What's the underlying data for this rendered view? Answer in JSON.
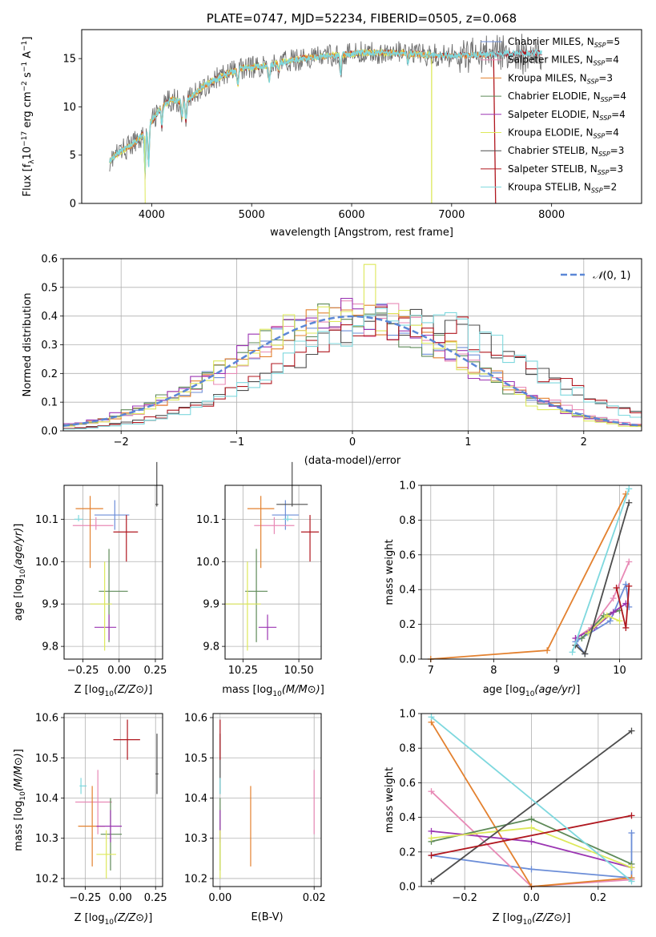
{
  "colors": {
    "c_miles": "#6c8ed8",
    "s_miles": "#e88ab6",
    "k_miles": "#e3812f",
    "c_elodie": "#5e8a58",
    "s_elodie": "#9b35b2",
    "k_elodie": "#dde85a",
    "c_stelib": "#4d4d4d",
    "s_stelib": "#b0171f",
    "k_stelib": "#7ed8de",
    "gauss": "#5b87d6"
  },
  "chart_data": [
    {
      "id": "spectrum",
      "type": "line",
      "title": "PLATE=0747, MJD=52234, FIBERID=0505, z=0.068",
      "xlabel": "wavelength [Angstrom, rest frame]",
      "ylabel": "Flux [fλ10⁻¹⁷ erg cm⁻² s⁻¹ A⁻¹]",
      "xlim": [
        3300,
        8900
      ],
      "ylim": [
        0,
        18
      ],
      "xticks": [
        4000,
        5000,
        6000,
        7000,
        8000
      ],
      "yticks": [
        0,
        5,
        10,
        15
      ],
      "legend": [
        {
          "label": "Chabrier MILES, N",
          "sub": "SSP",
          "tail": "=5",
          "color": "#6c8ed8"
        },
        {
          "label": "Salpeter MILES, N",
          "sub": "SSP",
          "tail": "=4",
          "color": "#e88ab6"
        },
        {
          "label": "Kroupa MILES, N",
          "sub": "SSP",
          "tail": "=3",
          "color": "#e3812f"
        },
        {
          "label": "Chabrier ELODIE, N",
          "sub": "SSP",
          "tail": "=4",
          "color": "#5e8a58"
        },
        {
          "label": "Salpeter ELODIE, N",
          "sub": "SSP",
          "tail": "=4",
          "color": "#9b35b2"
        },
        {
          "label": "Kroupa ELODIE, N",
          "sub": "SSP",
          "tail": "=4",
          "color": "#dde85a"
        },
        {
          "label": "Chabrier STELIB, N",
          "sub": "SSP",
          "tail": "=3",
          "color": "#4d4d4d"
        },
        {
          "label": "Salpeter STELIB, N",
          "sub": "SSP",
          "tail": "=3",
          "color": "#b0171f"
        },
        {
          "label": "Kroupa STELIB, N",
          "sub": "SSP",
          "tail": "=2",
          "color": "#7ed8de"
        }
      ],
      "continuum": [
        [
          3580,
          4.5
        ],
        [
          3700,
          5.5
        ],
        [
          3800,
          6.0
        ],
        [
          3900,
          7.0
        ],
        [
          4000,
          8.5
        ],
        [
          4100,
          10.0
        ],
        [
          4200,
          10.8
        ],
        [
          4300,
          10.5
        ],
        [
          4400,
          11.0
        ],
        [
          4500,
          12.0
        ],
        [
          4700,
          13.2
        ],
        [
          4900,
          14.0
        ],
        [
          5100,
          14.2
        ],
        [
          5300,
          14.6
        ],
        [
          5500,
          15.0
        ],
        [
          5700,
          15.2
        ],
        [
          5900,
          15.4
        ],
        [
          6100,
          15.6
        ],
        [
          6300,
          15.6
        ],
        [
          6500,
          15.6
        ],
        [
          6700,
          15.4
        ],
        [
          6900,
          15.3
        ],
        [
          7100,
          15.3
        ],
        [
          7300,
          15.4
        ],
        [
          7500,
          15.5
        ],
        [
          7800,
          15.6
        ],
        [
          8100,
          15.6
        ],
        [
          8400,
          15.7
        ],
        [
          8700,
          15.8
        ],
        [
          8880,
          15.9
        ]
      ]
    },
    {
      "id": "residual_hist",
      "type": "histogram",
      "xlabel": "(data-model)/error",
      "ylabel": "Normed distribution",
      "xlim": [
        -2.5,
        2.5
      ],
      "ylim": [
        0,
        0.6
      ],
      "xticks": [
        -2,
        -1,
        0,
        1,
        2
      ],
      "yticks": [
        0.0,
        0.1,
        0.2,
        0.3,
        0.4,
        0.5,
        0.6
      ],
      "legend": "N(0, 1)",
      "bin_width": 0.1
    },
    {
      "id": "age_vs_Z",
      "type": "scatter",
      "xlabel": "Z [log10(Z/Z⊙)]",
      "ylabel": "age  [log10(age/yr)]",
      "xlim": [
        -0.38,
        0.3
      ],
      "ylim": [
        9.77,
        10.18
      ],
      "xticks": [
        -0.25,
        0.0,
        0.25
      ],
      "yticks": [
        9.8,
        9.9,
        10.0,
        10.1
      ]
    },
    {
      "id": "age_vs_mass",
      "type": "scatter",
      "xlabel": "mass [log10(M/M⊙)]",
      "ylabel": "",
      "xlim": [
        10.17,
        10.6
      ],
      "ylim": [
        9.77,
        10.18
      ],
      "xticks": [
        10.25,
        10.5
      ],
      "yticks": [
        9.8,
        9.9,
        10.0,
        10.1
      ]
    },
    {
      "id": "weight_vs_age",
      "type": "line",
      "xlabel": "age  [log10(age/yr)]",
      "ylabel": "mass weight",
      "xlim": [
        6.85,
        10.35
      ],
      "ylim": [
        0,
        1.0
      ],
      "xticks": [
        7,
        8,
        9,
        10
      ],
      "yticks": [
        0.0,
        0.2,
        0.4,
        0.6,
        0.8,
        1.0
      ]
    },
    {
      "id": "mass_vs_Z",
      "type": "scatter",
      "xlabel": "Z [log10(Z/Z⊙)]",
      "ylabel": "mass [log10(M/M⊙)]",
      "xlim": [
        -0.4,
        0.3
      ],
      "ylim": [
        10.18,
        10.61
      ],
      "xticks": [
        -0.25,
        0.0,
        0.25
      ],
      "yticks": [
        10.2,
        10.3,
        10.4,
        10.5,
        10.6
      ]
    },
    {
      "id": "mass_vs_ebv",
      "type": "scatter",
      "xlabel": "E(B-V)",
      "ylabel": "",
      "xlim": [
        -0.0015,
        0.0215
      ],
      "ylim": [
        10.18,
        10.61
      ],
      "xticks": [
        0.0,
        0.02
      ],
      "yticks": [
        10.2,
        10.3,
        10.4,
        10.5,
        10.6
      ]
    },
    {
      "id": "weight_vs_Z",
      "type": "line",
      "xlabel": "Z [log10(Z/Z⊙)]",
      "ylabel": "mass weight",
      "xlim": [
        -0.33,
        0.33
      ],
      "ylim": [
        0,
        1.0
      ],
      "xticks": [
        -0.2,
        0.0,
        0.2
      ],
      "yticks": [
        0.0,
        0.2,
        0.4,
        0.6,
        0.8,
        1.0
      ]
    }
  ],
  "models": [
    {
      "key": "c_miles",
      "color": "#6c8ed8",
      "age": [
        10.0,
        0.05,
        0.05
      ],
      "Z": [
        0.0,
        0.1,
        0.1
      ],
      "mass": [
        10.435,
        0.06,
        0.07
      ],
      "mass_err_in_age_panel": [
        0.44,
        0.02,
        0.03
      ],
      "ebv": 0.0,
      "age_pts": [
        [
          9.45,
          0.03
        ],
        [
          9.3,
          0.1
        ],
        [
          9.85,
          0.22
        ],
        [
          10.1,
          0.43
        ],
        [
          10.15,
          0.3
        ]
      ],
      "Z_pts": [
        [
          -0.3,
          0.18
        ],
        [
          0.0,
          0.1
        ],
        [
          0.3,
          0.05
        ],
        [
          0.3,
          0.31
        ]
      ],
      "age_panel_pt": [
        -0.03,
        10.11,
        0.14,
        0.1,
        0.035,
        0.035
      ],
      "mass_panel_pt": [
        10.44,
        10.11,
        0.06,
        0.06,
        0.035,
        0.035
      ]
    },
    {
      "key": "s_miles",
      "color": "#e88ab6",
      "age_panel_pt": [
        -0.16,
        10.085,
        0.16,
        0.12,
        0.01,
        0.02
      ],
      "mass_panel_pt": [
        10.39,
        10.085,
        0.09,
        0.09,
        0.02,
        0.02
      ],
      "mass_Z_pt": [
        -0.16,
        10.39,
        0.16,
        0.1,
        0.08,
        0.08
      ],
      "ebv": 0.02,
      "age_pts": [
        [
          9.3,
          0.12
        ],
        [
          9.55,
          0.18
        ],
        [
          9.9,
          0.35
        ],
        [
          10.15,
          0.56
        ]
      ],
      "Z_pts": [
        [
          -0.3,
          0.55
        ],
        [
          0.0,
          0.0
        ],
        [
          0.3,
          0.04
        ]
      ]
    },
    {
      "key": "k_miles",
      "color": "#e3812f",
      "age_panel_pt": [
        -0.2,
        10.125,
        0.1,
        0.09,
        0.14,
        0.03
      ],
      "mass_panel_pt": [
        10.33,
        10.125,
        0.06,
        0.06,
        0.14,
        0.03
      ],
      "mass_Z_pt": [
        -0.2,
        10.33,
        0.1,
        0.09,
        0.1,
        0.1
      ],
      "ebv": 0.0065,
      "age_pts": [
        [
          7.0,
          0.0
        ],
        [
          8.85,
          0.05
        ],
        [
          10.1,
          0.95
        ]
      ],
      "Z_pts": [
        [
          -0.3,
          0.95
        ],
        [
          0.0,
          0.0
        ],
        [
          0.3,
          0.05
        ]
      ]
    },
    {
      "key": "c_elodie",
      "color": "#5e8a58",
      "age_panel_pt": [
        -0.07,
        9.93,
        0.07,
        0.13,
        0.12,
        0.1
      ],
      "mass_panel_pt": [
        10.31,
        9.93,
        0.05,
        0.05,
        0.12,
        0.1
      ],
      "mass_Z_pt": [
        -0.07,
        10.31,
        0.07,
        0.08,
        0.09,
        0.09
      ],
      "ebv": 0.0,
      "age_pts": [
        [
          9.4,
          0.12
        ],
        [
          9.75,
          0.25
        ],
        [
          10.0,
          0.28
        ]
      ],
      "Z_pts": [
        [
          -0.3,
          0.26
        ],
        [
          0.0,
          0.39
        ],
        [
          0.3,
          0.13
        ]
      ]
    },
    {
      "key": "s_elodie",
      "color": "#9b35b2",
      "age_panel_pt": [
        -0.07,
        9.845,
        0.1,
        0.05,
        0.03,
        0.03
      ],
      "mass_panel_pt": [
        10.36,
        9.845,
        0.04,
        0.04,
        0.03,
        0.03
      ],
      "mass_Z_pt": [
        -0.07,
        10.33,
        0.1,
        0.08,
        0.04,
        0.04
      ],
      "ebv": 0.0,
      "age_pts": [
        [
          9.3,
          0.12
        ],
        [
          9.6,
          0.18
        ],
        [
          9.9,
          0.27
        ],
        [
          10.1,
          0.32
        ]
      ],
      "Z_pts": [
        [
          -0.3,
          0.32
        ],
        [
          0.0,
          0.26
        ],
        [
          0.3,
          0.11
        ]
      ]
    },
    {
      "key": "k_elodie",
      "color": "#dde85a",
      "age_panel_pt": [
        -0.1,
        9.9,
        0.1,
        0.05,
        0.11,
        0.1
      ],
      "mass_panel_pt": [
        10.27,
        9.9,
        0.1,
        0.06,
        0.11,
        0.1
      ],
      "mass_Z_pt": [
        -0.1,
        10.26,
        0.07,
        0.07,
        0.06,
        0.06
      ],
      "ebv": 0.0,
      "age_pts": [
        [
          9.5,
          0.15
        ],
        [
          9.8,
          0.25
        ],
        [
          10.0,
          0.22
        ]
      ],
      "Z_pts": [
        [
          -0.3,
          0.28
        ],
        [
          0.0,
          0.34
        ],
        [
          0.3,
          0.11
        ]
      ]
    },
    {
      "key": "c_stelib",
      "color": "#4d4d4d",
      "age_panel_pt": [
        0.26,
        10.135,
        0.01,
        0.01,
        0.005,
        0.1
      ],
      "mass_panel_pt": [
        10.47,
        10.135,
        0.07,
        0.07,
        0.005,
        0.1
      ],
      "mass_Z_pt": [
        0.26,
        10.46,
        0.01,
        0.01,
        0.05,
        0.1
      ],
      "ebv": 0.0,
      "age_pts": [
        [
          9.3,
          0.08
        ],
        [
          9.45,
          0.03
        ],
        [
          10.15,
          0.9
        ]
      ],
      "Z_pts": [
        [
          -0.3,
          0.03
        ],
        [
          0.3,
          0.9
        ]
      ]
    },
    {
      "key": "s_stelib",
      "color": "#b0171f",
      "age_panel_pt": [
        0.05,
        10.07,
        0.09,
        0.08,
        0.07,
        0.04
      ],
      "mass_panel_pt": [
        10.55,
        10.07,
        0.04,
        0.04,
        0.07,
        0.04
      ],
      "mass_Z_pt": [
        0.05,
        10.545,
        0.1,
        0.09,
        0.05,
        0.05
      ],
      "ebv": 0.0,
      "age_pts": [
        [
          9.95,
          0.41
        ],
        [
          10.1,
          0.18
        ],
        [
          10.15,
          0.42
        ]
      ],
      "Z_pts": [
        [
          -0.3,
          0.18
        ],
        [
          0.3,
          0.41
        ]
      ]
    },
    {
      "key": "k_stelib",
      "color": "#7ed8de",
      "age_panel_pt": [
        -0.28,
        10.1,
        0.03,
        0.03,
        0.005,
        0.01
      ],
      "mass_panel_pt": [
        10.45,
        10.1,
        0.02,
        0.02,
        0.005,
        0.01
      ],
      "mass_Z_pt": [
        -0.28,
        10.43,
        0.01,
        0.04,
        0.02,
        0.02
      ],
      "ebv": 0.0,
      "age_pts": [
        [
          9.25,
          0.04
        ],
        [
          10.15,
          0.98
        ]
      ],
      "Z_pts": [
        [
          -0.3,
          0.98
        ],
        [
          0.3,
          0.03
        ]
      ]
    }
  ]
}
